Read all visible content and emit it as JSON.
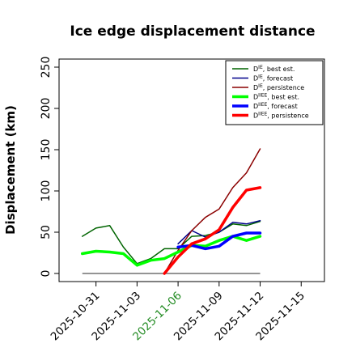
{
  "chart_data": {
    "type": "line",
    "title": "Ice edge displacement distance",
    "xlabel": "",
    "ylabel": "Displacement (km)",
    "ylim": [
      0,
      260
    ],
    "yticks": [
      0,
      50,
      100,
      150,
      200,
      250
    ],
    "xticks": [
      {
        "label": "2025-10-31",
        "color": "#000000"
      },
      {
        "label": "2025-11-03",
        "color": "#000000"
      },
      {
        "label": "2025-11-06",
        "color": "#228b22"
      },
      {
        "label": "2025-11-09",
        "color": "#000000"
      },
      {
        "label": "2025-11-12",
        "color": "#000000"
      },
      {
        "label": "2025-11-15",
        "color": "#000000"
      }
    ],
    "x_day_range": [
      -2.7,
      16.7
    ],
    "xtick_days": [
      0,
      3,
      6,
      9,
      12,
      15
    ],
    "legend_position": "top-right",
    "series": [
      {
        "label_main": "D",
        "label_sup": "IE",
        "label_rest": ", best est.",
        "color": "#006400",
        "width": 1.5,
        "x": [
          -1,
          0,
          1,
          2,
          3,
          4,
          5,
          6,
          7,
          8,
          9,
          10,
          11,
          12
        ],
        "y": [
          45,
          55,
          58,
          32,
          12,
          18,
          30,
          30,
          45,
          46,
          50,
          60,
          58,
          63
        ]
      },
      {
        "label_main": "D",
        "label_sup": "IE",
        "label_rest": ", forecast",
        "color": "#00008b",
        "width": 1.5,
        "x": [
          6,
          7,
          8,
          9,
          10,
          11,
          12
        ],
        "y": [
          36,
          52,
          44,
          50,
          62,
          60,
          64
        ]
      },
      {
        "label_main": "D",
        "label_sup": "IE",
        "label_rest": ", persistence",
        "color": "#8b0000",
        "width": 1.5,
        "x": [
          5,
          6,
          7,
          8,
          9,
          10,
          11,
          12
        ],
        "y": [
          0,
          28,
          52,
          68,
          78,
          104,
          122,
          151
        ]
      },
      {
        "label_main": "D",
        "label_sup": "IIEE",
        "label_rest": ", best est.",
        "color": "#00ff00",
        "width": 3.5,
        "x": [
          -1,
          0,
          1,
          2,
          3,
          4,
          5,
          6,
          7,
          8,
          9,
          10,
          11,
          12
        ],
        "y": [
          24,
          27,
          26,
          24,
          10,
          16,
          18,
          26,
          34,
          33,
          40,
          45,
          40,
          45
        ]
      },
      {
        "label_main": "D",
        "label_sup": "IIEE",
        "label_rest": ", forecast",
        "color": "#0000ff",
        "width": 3.5,
        "x": [
          6,
          7,
          8,
          9,
          10,
          11,
          12
        ],
        "y": [
          32,
          34,
          30,
          33,
          45,
          49,
          49
        ]
      },
      {
        "label_main": "D",
        "label_sup": "IIEE",
        "label_rest": ", persistence",
        "color": "#ff0000",
        "width": 3.5,
        "x": [
          5,
          6,
          7,
          8,
          9,
          10,
          11,
          12
        ],
        "y": [
          0,
          20,
          36,
          42,
          53,
          80,
          101,
          104
        ]
      }
    ],
    "baseline": {
      "color": "#555555",
      "x": [
        -1,
        12
      ],
      "y": [
        0,
        0
      ]
    }
  }
}
